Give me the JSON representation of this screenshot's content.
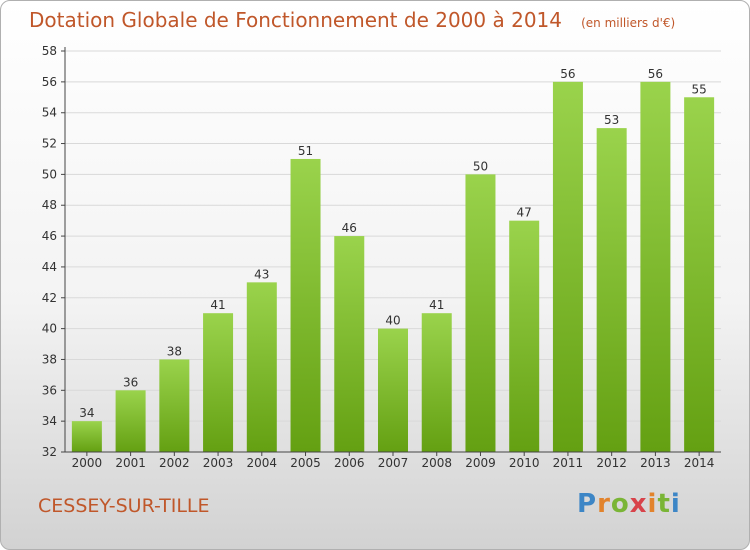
{
  "title": "Dotation Globale de Fonctionnement de 2000 à 2014",
  "unit_note": "(en milliers d'€)",
  "commune": "CESSEY-SUR-TILLE",
  "logo": {
    "letters": [
      "P",
      "r",
      "o",
      "x",
      "i",
      "t",
      "i"
    ]
  },
  "colors": {
    "title": "#c0572a",
    "bar_top": "#9ad34c",
    "bar_bottom": "#64a012",
    "axis": "#444444",
    "grid": "#d9d9d9"
  },
  "chart_data": {
    "type": "bar",
    "categories": [
      "2000",
      "2001",
      "2002",
      "2003",
      "2004",
      "2005",
      "2006",
      "2007",
      "2008",
      "2009",
      "2010",
      "2011",
      "2012",
      "2013",
      "2014"
    ],
    "values": [
      34,
      36,
      38,
      41,
      43,
      51,
      46,
      40,
      41,
      50,
      47,
      56,
      53,
      56,
      55
    ],
    "title": "Dotation Globale de Fonctionnement de 2000 à 2014",
    "unit": "(en milliers d'€)",
    "xlabel": "",
    "ylabel": "",
    "ylim": [
      32,
      58
    ],
    "yticks": [
      32,
      34,
      36,
      38,
      40,
      42,
      44,
      46,
      48,
      50,
      52,
      54,
      56,
      58
    ],
    "grid": true,
    "data_labels": true
  }
}
